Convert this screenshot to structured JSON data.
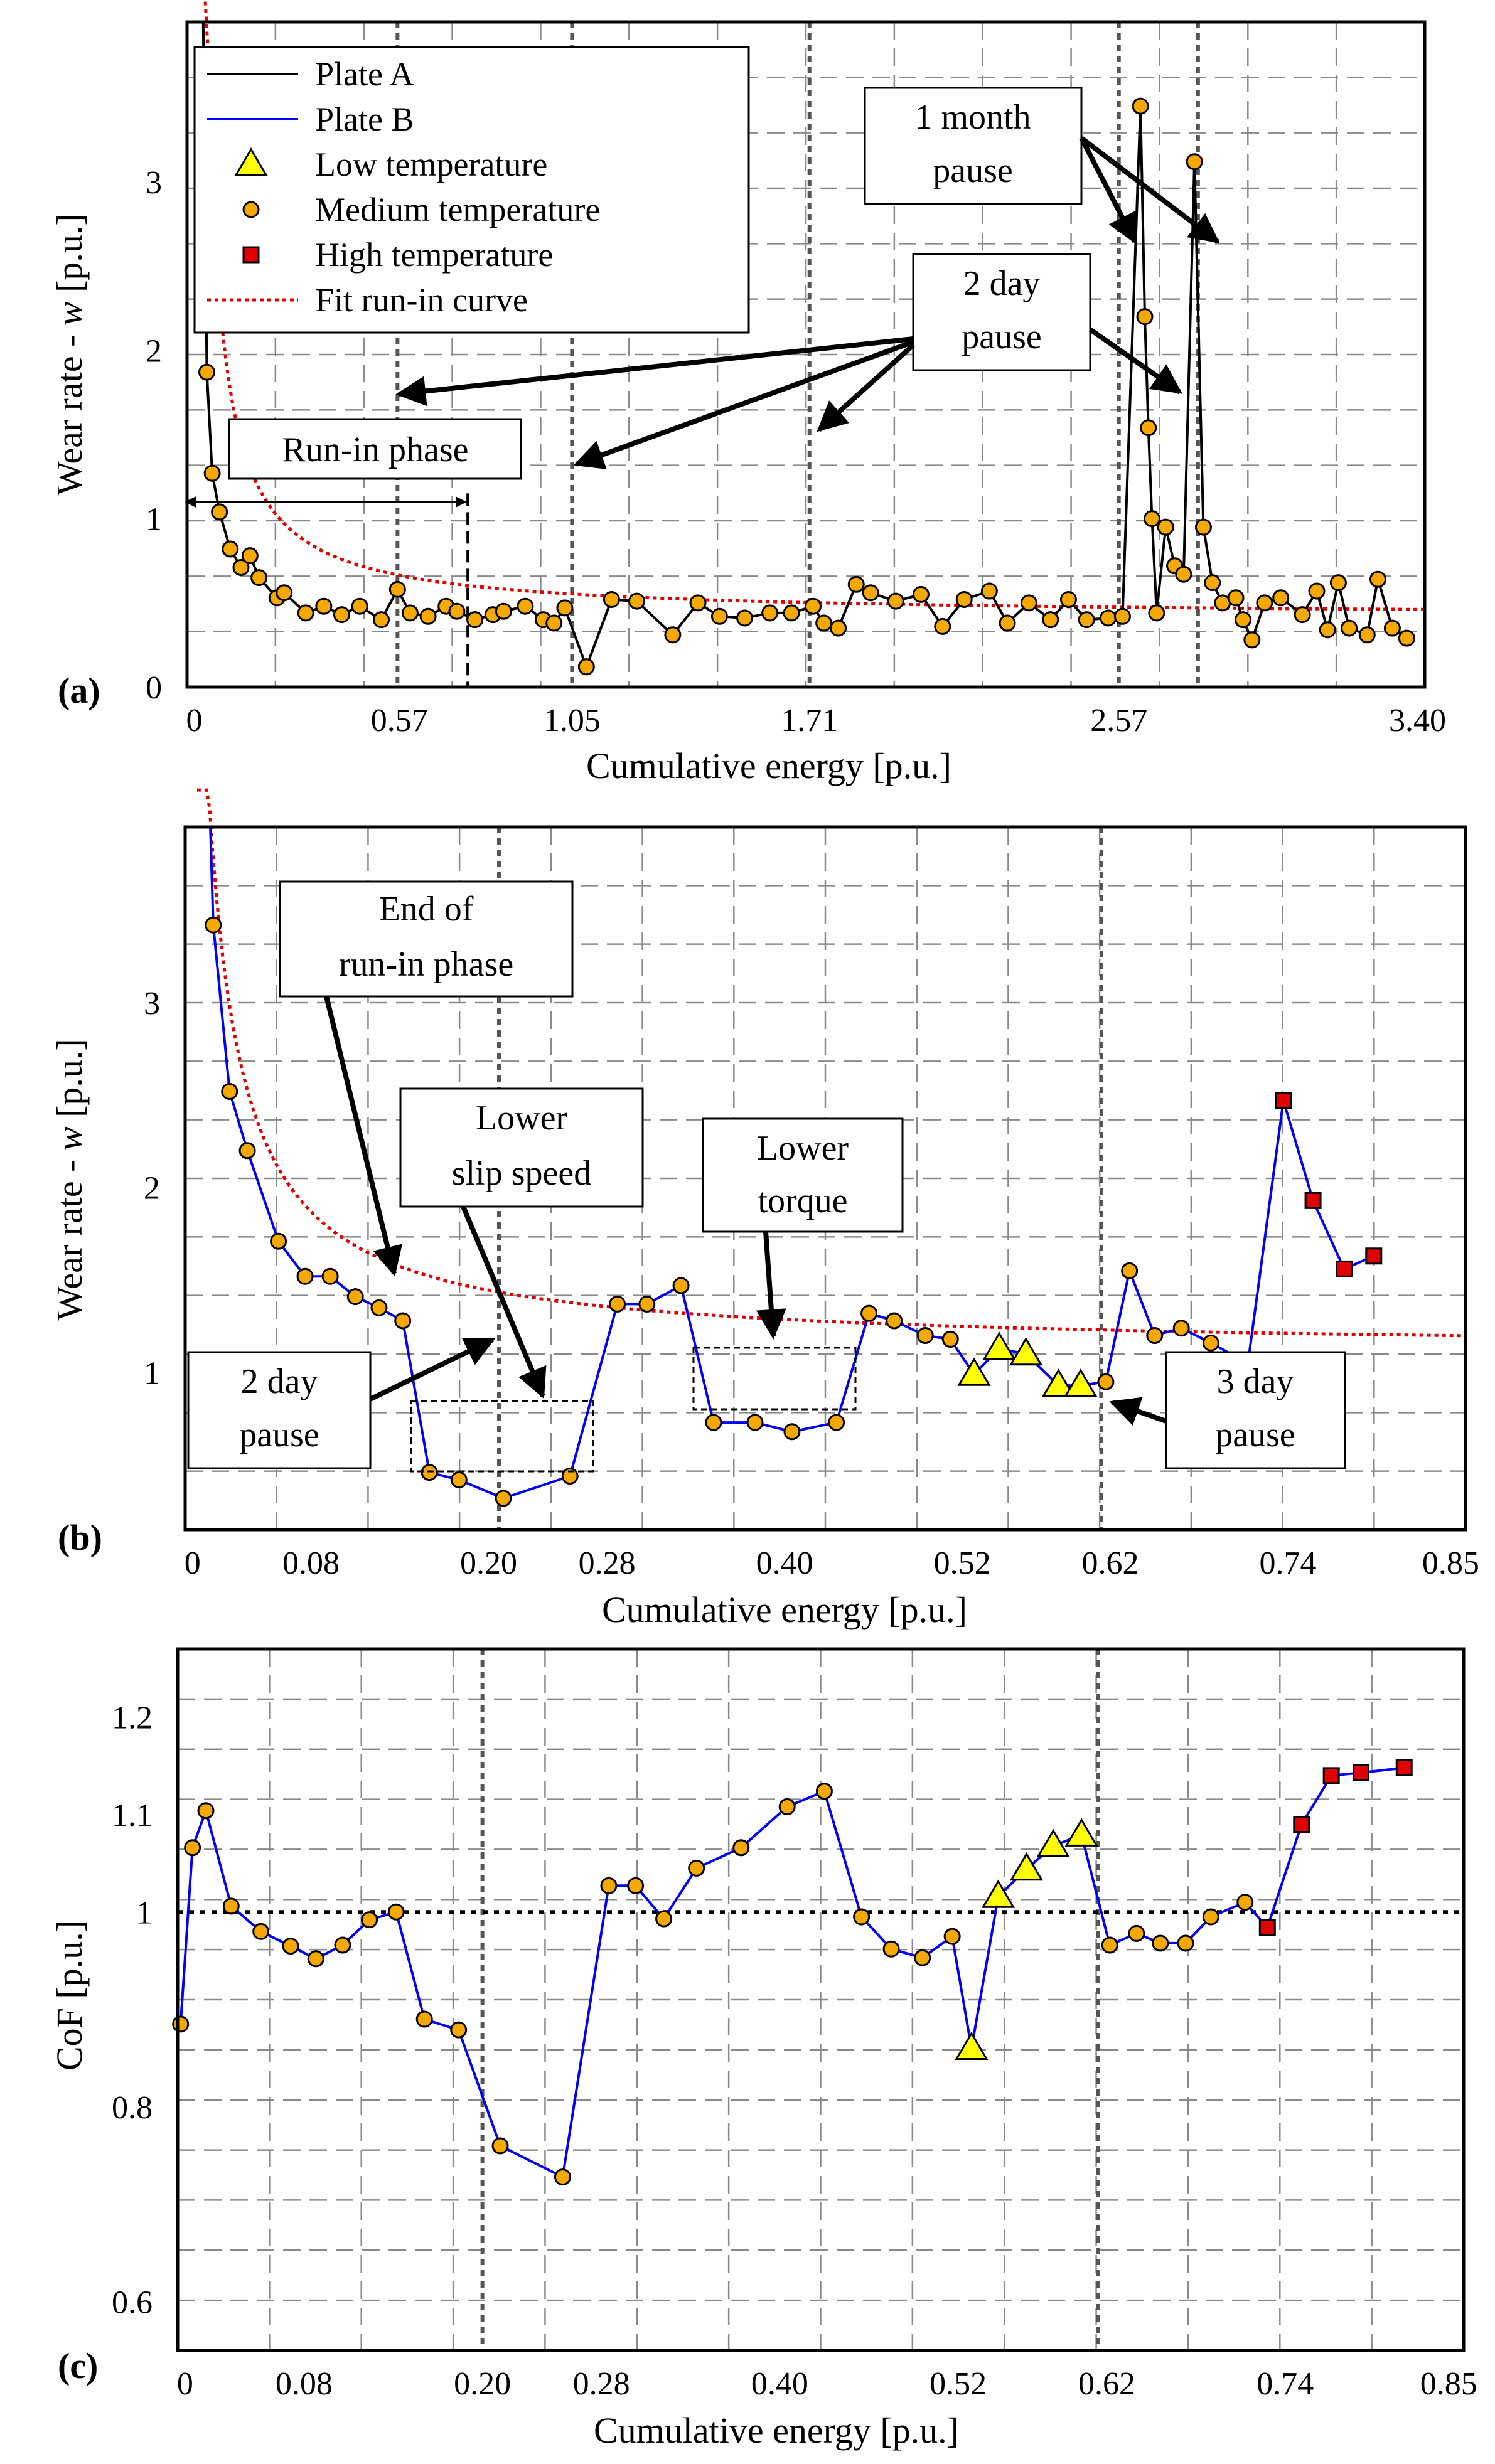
{
  "chart_data": [
    {
      "panel": "(a)",
      "type": "line",
      "xlabel": "Cumulative energy [p.u.]",
      "ylabel_prefix": "Wear rate - ",
      "ylabel_var": "w",
      "ylabel_suffix": " [p.u.]",
      "xticks": [
        0,
        0.57,
        1.05,
        1.71,
        2.57,
        3.4
      ],
      "xtick_labels": [
        "0",
        "0.57",
        "1.05",
        "1.71",
        "2.57",
        "3.40"
      ],
      "yticks": [
        0,
        1,
        2,
        3
      ],
      "ytick_labels": [
        "0",
        "1",
        "2",
        "3"
      ],
      "xlim": [
        -0.02,
        3.42
      ],
      "ylim": [
        0,
        3.95
      ],
      "legend": {
        "placement": "top-left",
        "entries": [
          {
            "label": "Plate A",
            "kind": "line",
            "color": "#000000"
          },
          {
            "label": "Plate B",
            "kind": "line",
            "color": "#0000ff"
          },
          {
            "label": "Low temperature",
            "kind": "triangle",
            "color": "#ffff00"
          },
          {
            "label": "Medium temperature",
            "kind": "circle",
            "color": "#f5a800"
          },
          {
            "label": "High temperature",
            "kind": "square",
            "color": "#e00000"
          },
          {
            "label": "Fit run-in curve",
            "kind": "dotted",
            "color": "#e00000"
          }
        ]
      },
      "series": [
        {
          "name": "Plate A",
          "color": "#000000",
          "marker": "circle",
          "x": [
            0.035,
            0.05,
            0.07,
            0.1,
            0.13,
            0.155,
            0.18,
            0.23,
            0.25,
            0.31,
            0.36,
            0.41,
            0.46,
            0.52,
            0.565,
            0.6,
            0.65,
            0.7,
            0.73,
            0.78,
            0.83,
            0.86,
            0.92,
            0.97,
            1.0,
            1.03,
            1.09,
            1.16,
            1.23,
            1.33,
            1.4,
            1.46,
            1.53,
            1.6,
            1.66,
            1.72,
            1.75,
            1.79,
            1.84,
            1.88,
            1.95,
            2.02,
            2.08,
            2.14,
            2.21,
            2.26,
            2.32,
            2.38,
            2.43,
            2.48,
            2.54,
            2.58,
            2.63,
            2.642,
            2.652,
            2.662,
            2.675,
            2.7,
            2.725,
            2.75,
            2.78,
            2.805,
            2.83,
            2.858,
            2.895,
            2.915,
            2.94,
            2.975,
            3.02,
            3.08,
            3.12,
            3.15,
            3.18,
            3.21,
            3.26,
            3.29,
            3.33,
            3.37
          ],
          "values": [
            1.87,
            1.27,
            1.04,
            0.82,
            0.71,
            0.78,
            0.65,
            0.53,
            0.56,
            0.44,
            0.48,
            0.43,
            0.48,
            0.4,
            0.58,
            0.44,
            0.42,
            0.48,
            0.45,
            0.4,
            0.43,
            0.45,
            0.48,
            0.4,
            0.38,
            0.47,
            0.12,
            0.52,
            0.51,
            0.31,
            0.5,
            0.42,
            0.41,
            0.44,
            0.44,
            0.48,
            0.38,
            0.35,
            0.61,
            0.56,
            0.51,
            0.55,
            0.36,
            0.52,
            0.57,
            0.38,
            0.5,
            0.4,
            0.52,
            0.4,
            0.41,
            0.42,
            3.45,
            2.2,
            1.54,
            1.0,
            0.44,
            0.95,
            0.72,
            0.67,
            3.12,
            0.95,
            0.62,
            0.5,
            0.53,
            0.4,
            0.28,
            0.5,
            0.53,
            0.43,
            0.57,
            0.34,
            0.62,
            0.35,
            0.31,
            0.64,
            0.35,
            0.29
          ]
        },
        {
          "name": "Fit run-in curve",
          "color": "#e00000",
          "style": "dotted",
          "model": {
            "a": 0.42,
            "b": 0.14,
            "x0": 0.008
          }
        }
      ],
      "vlines_dashed": [
        0.565,
        1.05,
        1.71,
        2.57,
        2.79
      ],
      "vline_runin_end": 0.76,
      "annotations": [
        {
          "lines": [
            "1 month",
            "pause"
          ]
        },
        {
          "lines": [
            "2 day",
            "pause"
          ]
        },
        {
          "lines": [
            "Run-in phase"
          ]
        }
      ]
    },
    {
      "panel": "(b)",
      "type": "line",
      "xlabel": "Cumulative energy [p.u.]",
      "ylabel_prefix": "Wear rate - ",
      "ylabel_var": "w",
      "ylabel_suffix": " [p.u.]",
      "xticks": [
        0,
        0.08,
        0.2,
        0.28,
        0.4,
        0.52,
        0.62,
        0.74,
        0.85
      ],
      "xtick_labels": [
        "0",
        "0.08",
        "0.20",
        "0.28",
        "0.40",
        "0.52",
        "0.62",
        "0.74",
        "0.85"
      ],
      "yticks": [
        1,
        2,
        3
      ],
      "ytick_labels": [
        "1",
        "2",
        "3"
      ],
      "xlim": [
        -0.005,
        0.86
      ],
      "ylim": [
        0.15,
        3.95
      ],
      "series": [
        {
          "name": "Plate B",
          "color": "#0000ff",
          "points": [
            [
              0.014,
              3.42,
              "M"
            ],
            [
              0.025,
              2.52,
              "M"
            ],
            [
              0.037,
              2.2,
              "M"
            ],
            [
              0.058,
              1.71,
              "M"
            ],
            [
              0.076,
              1.52,
              "M"
            ],
            [
              0.093,
              1.52,
              "M"
            ],
            [
              0.11,
              1.41,
              "M"
            ],
            [
              0.126,
              1.35,
              "M"
            ],
            [
              0.142,
              1.28,
              "M"
            ],
            [
              0.16,
              0.46,
              "M"
            ],
            [
              0.18,
              0.42,
              "M"
            ],
            [
              0.21,
              0.32,
              "M"
            ],
            [
              0.255,
              0.44,
              "M"
            ],
            [
              0.287,
              1.37,
              "M"
            ],
            [
              0.307,
              1.37,
              "M"
            ],
            [
              0.33,
              1.47,
              "M"
            ],
            [
              0.352,
              0.73,
              "M"
            ],
            [
              0.38,
              0.73,
              "M"
            ],
            [
              0.405,
              0.68,
              "M"
            ],
            [
              0.435,
              0.73,
              "M"
            ],
            [
              0.457,
              1.32,
              "M"
            ],
            [
              0.474,
              1.28,
              "M"
            ],
            [
              0.495,
              1.2,
              "M"
            ],
            [
              0.512,
              1.18,
              "M"
            ],
            [
              0.528,
              0.99,
              "L"
            ],
            [
              0.545,
              1.13,
              "L"
            ],
            [
              0.563,
              1.1,
              "L"
            ],
            [
              0.585,
              0.93,
              "L"
            ],
            [
              0.6,
              0.93,
              "L"
            ],
            [
              0.617,
              0.95,
              "M"
            ],
            [
              0.633,
              1.55,
              "M"
            ],
            [
              0.65,
              1.2,
              "M"
            ],
            [
              0.668,
              1.24,
              "M"
            ],
            [
              0.688,
              1.16,
              "M"
            ],
            [
              0.713,
              1.05,
              "M"
            ],
            [
              0.737,
              2.47,
              "H"
            ],
            [
              0.757,
              1.93,
              "H"
            ],
            [
              0.778,
              1.56,
              "H"
            ],
            [
              0.798,
              1.63,
              "H"
            ]
          ]
        },
        {
          "name": "Fit run-in curve",
          "color": "#e00000",
          "style": "dotted",
          "model": {
            "a": 1.12,
            "b": 0.069,
            "x0": 0.0
          }
        }
      ],
      "vlines_dashed": [
        0.207,
        0.614
      ],
      "annotations": [
        {
          "lines": [
            "End of",
            "run-in phase"
          ]
        },
        {
          "lines": [
            "Lower",
            "slip speed"
          ]
        },
        {
          "lines": [
            "Lower",
            "torque"
          ]
        },
        {
          "lines": [
            "2 day",
            "pause"
          ]
        },
        {
          "lines": [
            "3 day",
            "pause"
          ]
        }
      ]
    },
    {
      "panel": "(c)",
      "type": "line",
      "xlabel": "Cumulative energy [p.u.]",
      "ylabel": "CoF [p.u.]",
      "xticks": [
        0,
        0.08,
        0.2,
        0.28,
        0.4,
        0.52,
        0.62,
        0.74,
        0.85
      ],
      "xtick_labels": [
        "0",
        "0.08",
        "0.20",
        "0.28",
        "0.40",
        "0.52",
        "0.62",
        "0.74",
        "0.85"
      ],
      "yticks": [
        0.6,
        0.8,
        1,
        1.1,
        1.2
      ],
      "ytick_labels": [
        "0.6",
        "0.8",
        "1",
        "1.1",
        "1.2"
      ],
      "xlim": [
        -0.005,
        0.86
      ],
      "ylim": [
        0.55,
        1.27
      ],
      "reference_line": 1.0,
      "series": [
        {
          "name": "Plate B",
          "color": "#0000ff",
          "points": [
            [
              -0.003,
              0.885,
              "M"
            ],
            [
              0.005,
              1.066,
              "M"
            ],
            [
              0.014,
              1.104,
              "M"
            ],
            [
              0.031,
              1.006,
              "M"
            ],
            [
              0.051,
              0.98,
              "M"
            ],
            [
              0.071,
              0.965,
              "M"
            ],
            [
              0.088,
              0.952,
              "M"
            ],
            [
              0.106,
              0.966,
              "M"
            ],
            [
              0.124,
              0.992,
              "M"
            ],
            [
              0.142,
              1.0,
              "M"
            ],
            [
              0.161,
              0.89,
              "M"
            ],
            [
              0.184,
              0.879,
              "M"
            ],
            [
              0.212,
              0.76,
              "M"
            ],
            [
              0.254,
              0.728,
              "M"
            ],
            [
              0.285,
              1.027,
              "M"
            ],
            [
              0.303,
              1.027,
              "M"
            ],
            [
              0.322,
              0.993,
              "M"
            ],
            [
              0.344,
              1.045,
              "M"
            ],
            [
              0.374,
              1.066,
              "M"
            ],
            [
              0.405,
              1.108,
              "M"
            ],
            [
              0.43,
              1.124,
              "M"
            ],
            [
              0.455,
              0.995,
              "M"
            ],
            [
              0.475,
              0.962,
              "M"
            ],
            [
              0.496,
              0.953,
              "M"
            ],
            [
              0.516,
              0.975,
              "L-skip"
            ],
            [
              0.529,
              0.86,
              "L"
            ],
            [
              0.547,
              1.016,
              "L"
            ],
            [
              0.566,
              1.044,
              "L"
            ],
            [
              0.584,
              1.068,
              "L"
            ],
            [
              0.603,
              1.079,
              "L"
            ],
            [
              0.622,
              0.966,
              "M"
            ],
            [
              0.64,
              0.978,
              "M"
            ],
            [
              0.656,
              0.968,
              "M"
            ],
            [
              0.673,
              0.968,
              "M"
            ],
            [
              0.69,
              0.995,
              "M"
            ],
            [
              0.713,
              1.01,
              "M"
            ],
            [
              0.728,
              0.984,
              "H"
            ],
            [
              0.751,
              1.09,
              "H"
            ],
            [
              0.771,
              1.14,
              "H"
            ],
            [
              0.791,
              1.143,
              "H"
            ],
            [
              0.82,
              1.148,
              "H"
            ]
          ]
        }
      ],
      "vlines_dashed": [
        0.2,
        0.614
      ]
    }
  ]
}
